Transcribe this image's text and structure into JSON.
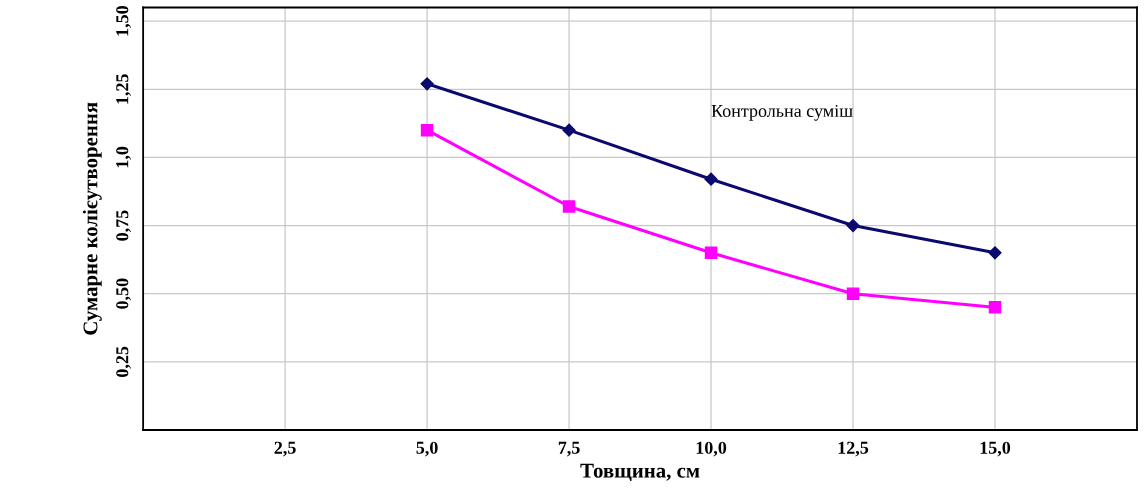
{
  "chart_data": {
    "type": "line",
    "xlabel": "Товщина, см",
    "ylabel": "Сумарне колієутворення",
    "x": [
      5.0,
      7.5,
      10.0,
      12.5,
      15.0
    ],
    "series": [
      {
        "name": "Контрольна суміш",
        "color": "#0a0a6e",
        "marker": "diamond",
        "values": [
          1.27,
          1.1,
          0.92,
          0.75,
          0.65
        ]
      },
      {
        "color": "#ff00ff",
        "marker": "square",
        "values": [
          1.1,
          0.82,
          0.65,
          0.5,
          0.45
        ]
      }
    ],
    "xlim": [
      0,
      17.5
    ],
    "xticks": [
      {
        "value": 2.5,
        "label": "2,5"
      },
      {
        "value": 5.0,
        "label": "5,0"
      },
      {
        "value": 7.5,
        "label": "7,5"
      },
      {
        "value": 10.0,
        "label": "10,0"
      },
      {
        "value": 12.5,
        "label": "12,5"
      },
      {
        "value": 15.0,
        "label": "15,0"
      }
    ],
    "ylim": [
      0,
      1.55
    ],
    "yticks": [
      {
        "value": 0.25,
        "label": "0,25"
      },
      {
        "value": 0.5,
        "label": "0,50"
      },
      {
        "value": 0.75,
        "label": "0,75"
      },
      {
        "value": 1.0,
        "label": "1,0"
      },
      {
        "value": 1.25,
        "label": "1,25"
      },
      {
        "value": 1.5,
        "label": "1,50"
      }
    ],
    "grid": true,
    "legend": false
  }
}
